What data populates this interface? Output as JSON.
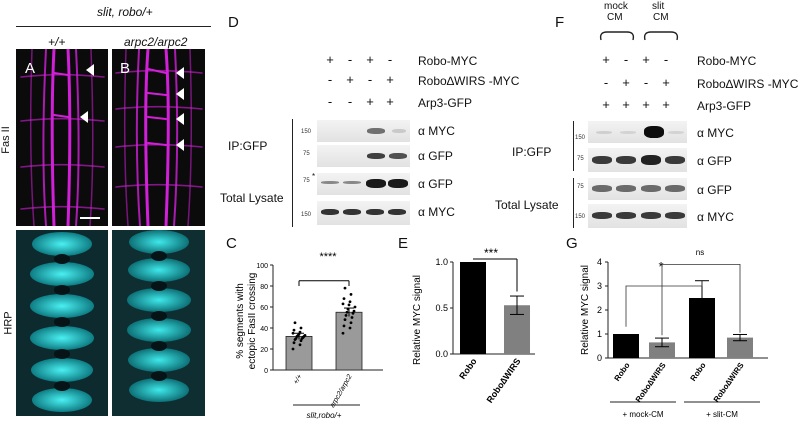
{
  "figure": {
    "genotype_header": "slit, robo/+",
    "panel_a": {
      "letter": "A",
      "genotype": "+/+"
    },
    "panel_b": {
      "letter": "B",
      "genotype": "arpc2/arpc2"
    },
    "row_labels": {
      "top": "Fas II",
      "bottom": "HRP"
    },
    "colors": {
      "fasII": "#d21fd8",
      "hrp": "#19d2d6",
      "bars_dark": "#000000",
      "bars_light": "#808080"
    }
  },
  "panel_c": {
    "letter": "C",
    "ylabel_line1": "% segments with",
    "ylabel_line2": "ectopic FasII crossing",
    "significance": "****",
    "group_label": "slit,robo/+",
    "chart_data": {
      "type": "bar",
      "categories": [
        "+/+",
        "arpc2/arpc2"
      ],
      "values": [
        32,
        55
      ],
      "errors": [
        3,
        4
      ],
      "ylim": [
        0,
        100
      ],
      "yticks": [
        0,
        20,
        40,
        60,
        80,
        100
      ],
      "points": [
        [
          20,
          24,
          26,
          28,
          29,
          30,
          30,
          31,
          32,
          32,
          33,
          33,
          34,
          35,
          36,
          38,
          40,
          45
        ],
        [
          35,
          40,
          42,
          45,
          48,
          50,
          52,
          54,
          55,
          56,
          58,
          60,
          62,
          63,
          65,
          68,
          72,
          78
        ]
      ],
      "xlabel": "",
      "ylabel": "% segments with ectopic FasII crossing"
    }
  },
  "panel_d": {
    "letter": "D",
    "row_labels": [
      "Robo-MYC",
      "Robo∆WIRS -MYC",
      "Arp3-GFP"
    ],
    "signs": [
      [
        "+",
        "-",
        "+",
        "-"
      ],
      [
        "-",
        "+",
        "-",
        "+"
      ],
      [
        "-",
        "-",
        "+",
        "+"
      ]
    ],
    "section_labels": {
      "ip": "IP:GFP",
      "lysate": "Total Lysate"
    },
    "antibodies": [
      "α MYC",
      "α GFP",
      "α GFP",
      "α MYC"
    ],
    "mw": [
      "150",
      "75",
      "75",
      "150"
    ],
    "asterisk": "*"
  },
  "panel_e": {
    "letter": "E",
    "significance": "***",
    "chart_data": {
      "type": "bar",
      "categories": [
        "Robo",
        "Robo∆WIRS"
      ],
      "values": [
        1.0,
        0.53
      ],
      "errors": [
        0,
        0.1
      ],
      "ylim": [
        0,
        1.0
      ],
      "yticks": [
        "0.0",
        "0.5",
        "1.0"
      ],
      "xlabel": "",
      "ylabel": "Relative MYC signal"
    }
  },
  "panel_f": {
    "letter": "F",
    "cm_labels": {
      "mock_line1": "mock",
      "mock_line2": "CM",
      "slit_line1": "slit",
      "slit_line2": "CM"
    },
    "row_labels": [
      "Robo-MYC",
      "Robo∆WIRS -MYC",
      "Arp3-GFP"
    ],
    "signs": [
      [
        "+",
        "-",
        "+",
        "-"
      ],
      [
        "-",
        "+",
        "-",
        "+"
      ],
      [
        "+",
        "+",
        "+",
        "+"
      ]
    ],
    "section_labels": {
      "ip": "IP:GFP",
      "lysate": "Total Lysate"
    },
    "antibodies": [
      "α MYC",
      "α GFP",
      "α GFP",
      "α MYC"
    ],
    "mw": [
      "150",
      "75",
      "75",
      "150"
    ]
  },
  "panel_g": {
    "letter": "G",
    "significance_star": "*",
    "significance_ns": "ns",
    "group_labels": [
      "+ mock-CM",
      "+ slit-CM"
    ],
    "chart_data": {
      "type": "bar",
      "categories": [
        "Robo",
        "Robo∆WIRS",
        "Robo",
        "Robo∆WIRS"
      ],
      "values": [
        1.0,
        0.65,
        2.5,
        0.85
      ],
      "errors": [
        0,
        0.18,
        0.72,
        0.13
      ],
      "ylim": [
        0,
        4
      ],
      "yticks": [
        "0",
        "1",
        "2",
        "3",
        "4"
      ],
      "xlabel": "",
      "ylabel": "Relative MYC signal"
    }
  }
}
